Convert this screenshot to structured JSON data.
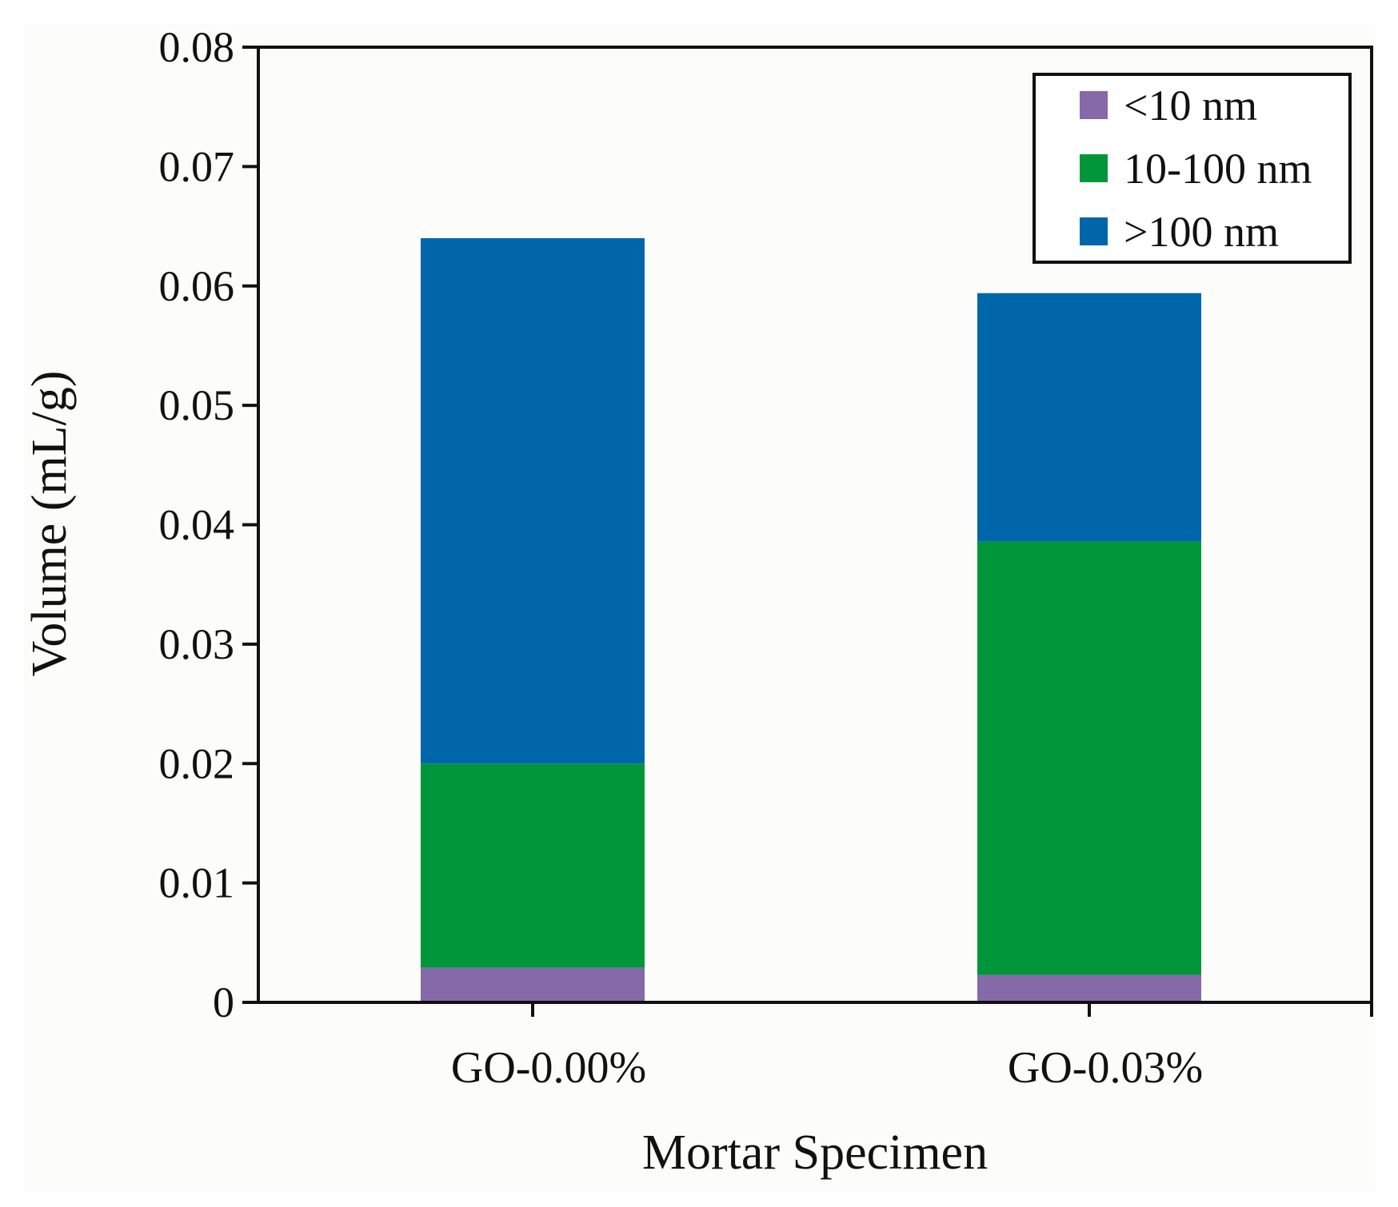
{
  "chart_data": {
    "type": "bar",
    "stacked": true,
    "title": "",
    "xlabel": "Mortar Specimen",
    "ylabel": "Volume (mL/g)",
    "ylim": [
      0,
      0.08
    ],
    "yticks": [
      "0",
      "0.01",
      "0.02",
      "0.03",
      "0.04",
      "0.05",
      "0.06",
      "0.07",
      "0.08"
    ],
    "ytick_values": [
      0,
      0.01,
      0.02,
      0.03,
      0.04,
      0.05,
      0.06,
      0.07,
      0.08
    ],
    "categories": [
      "GO-0.00%",
      "GO-0.03%"
    ],
    "series": [
      {
        "name": "<10 nm",
        "color": "#8569a8",
        "values": [
          0.0029,
          0.0023
        ]
      },
      {
        "name": "10-100 nm",
        "color": "#009639",
        "values": [
          0.0171,
          0.0363
        ]
      },
      {
        "name": ">100 nm",
        "color": "#0066aa",
        "values": [
          0.044,
          0.0208
        ]
      }
    ],
    "legend": {
      "position": "top-right",
      "labels": [
        "<10 nm",
        "10-100 nm",
        ">100 nm"
      ]
    },
    "grid": false
  }
}
